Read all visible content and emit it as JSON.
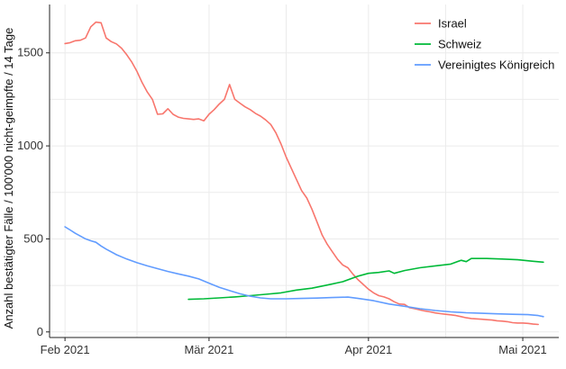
{
  "chart_data": {
    "type": "line",
    "title": "",
    "xlabel": "",
    "ylabel": "Anzahl bestätigter Fälle / 100'000 nicht-geimpfte / 14 Tage",
    "x_range": [
      "2021-01-29",
      "2021-05-08"
    ],
    "ylim": [
      -30,
      1760
    ],
    "x_ticks": [
      {
        "date": "2021-02-01",
        "label": "Feb 2021"
      },
      {
        "date": "2021-03-01",
        "label": "Mär 2021"
      },
      {
        "date": "2021-04-01",
        "label": "Apr 2021"
      },
      {
        "date": "2021-05-01",
        "label": "Mai 2021"
      }
    ],
    "y_ticks": [
      0,
      500,
      1000,
      1500
    ],
    "grid": true,
    "legend_position": "top-right",
    "series": [
      {
        "name": "Israel",
        "color": "#f8766d",
        "points": [
          [
            "2021-02-01",
            1550
          ],
          [
            "2021-02-02",
            1555
          ],
          [
            "2021-02-03",
            1565
          ],
          [
            "2021-02-04",
            1568
          ],
          [
            "2021-02-05",
            1580
          ],
          [
            "2021-02-06",
            1640
          ],
          [
            "2021-02-07",
            1665
          ],
          [
            "2021-02-08",
            1662
          ],
          [
            "2021-02-09",
            1580
          ],
          [
            "2021-02-10",
            1560
          ],
          [
            "2021-02-11",
            1548
          ],
          [
            "2021-02-12",
            1525
          ],
          [
            "2021-02-13",
            1490
          ],
          [
            "2021-02-14",
            1450
          ],
          [
            "2021-02-15",
            1400
          ],
          [
            "2021-02-16",
            1340
          ],
          [
            "2021-02-17",
            1290
          ],
          [
            "2021-02-18",
            1250
          ],
          [
            "2021-02-19",
            1170
          ],
          [
            "2021-02-20",
            1172
          ],
          [
            "2021-02-21",
            1200
          ],
          [
            "2021-02-22",
            1170
          ],
          [
            "2021-02-23",
            1155
          ],
          [
            "2021-02-24",
            1148
          ],
          [
            "2021-02-25",
            1145
          ],
          [
            "2021-02-26",
            1142
          ],
          [
            "2021-02-27",
            1145
          ],
          [
            "2021-02-28",
            1135
          ],
          [
            "2021-03-01",
            1170
          ],
          [
            "2021-03-02",
            1195
          ],
          [
            "2021-03-03",
            1225
          ],
          [
            "2021-03-04",
            1250
          ],
          [
            "2021-03-05",
            1330
          ],
          [
            "2021-03-06",
            1250
          ],
          [
            "2021-03-07",
            1230
          ],
          [
            "2021-03-08",
            1210
          ],
          [
            "2021-03-09",
            1195
          ],
          [
            "2021-03-10",
            1175
          ],
          [
            "2021-03-11",
            1160
          ],
          [
            "2021-03-12",
            1140
          ],
          [
            "2021-03-13",
            1115
          ],
          [
            "2021-03-14",
            1070
          ],
          [
            "2021-03-15",
            1010
          ],
          [
            "2021-03-16",
            940
          ],
          [
            "2021-03-17",
            880
          ],
          [
            "2021-03-18",
            820
          ],
          [
            "2021-03-19",
            760
          ],
          [
            "2021-03-20",
            720
          ],
          [
            "2021-03-21",
            660
          ],
          [
            "2021-03-22",
            590
          ],
          [
            "2021-03-23",
            520
          ],
          [
            "2021-03-24",
            470
          ],
          [
            "2021-03-25",
            430
          ],
          [
            "2021-03-26",
            390
          ],
          [
            "2021-03-27",
            360
          ],
          [
            "2021-03-28",
            345
          ],
          [
            "2021-03-29",
            310
          ],
          [
            "2021-03-30",
            280
          ],
          [
            "2021-03-31",
            255
          ],
          [
            "2021-04-01",
            230
          ],
          [
            "2021-04-02",
            210
          ],
          [
            "2021-04-03",
            195
          ],
          [
            "2021-04-04",
            188
          ],
          [
            "2021-04-05",
            178
          ],
          [
            "2021-04-06",
            162
          ],
          [
            "2021-04-07",
            150
          ],
          [
            "2021-04-08",
            148
          ],
          [
            "2021-04-09",
            130
          ],
          [
            "2021-04-10",
            125
          ],
          [
            "2021-04-11",
            118
          ],
          [
            "2021-04-12",
            112
          ],
          [
            "2021-04-13",
            108
          ],
          [
            "2021-04-14",
            102
          ],
          [
            "2021-04-15",
            98
          ],
          [
            "2021-04-16",
            95
          ],
          [
            "2021-04-17",
            92
          ],
          [
            "2021-04-18",
            88
          ],
          [
            "2021-04-19",
            82
          ],
          [
            "2021-04-20",
            76
          ],
          [
            "2021-04-21",
            72
          ],
          [
            "2021-04-22",
            70
          ],
          [
            "2021-04-23",
            68
          ],
          [
            "2021-04-24",
            66
          ],
          [
            "2021-04-25",
            64
          ],
          [
            "2021-04-26",
            60
          ],
          [
            "2021-04-27",
            58
          ],
          [
            "2021-04-28",
            55
          ],
          [
            "2021-04-29",
            50
          ],
          [
            "2021-04-30",
            48
          ],
          [
            "2021-05-01",
            48
          ],
          [
            "2021-05-02",
            46
          ],
          [
            "2021-05-03",
            42
          ],
          [
            "2021-05-04",
            40
          ]
        ]
      },
      {
        "name": "Schweiz",
        "color": "#00ba38",
        "points": [
          [
            "2021-02-25",
            175
          ],
          [
            "2021-02-28",
            178
          ],
          [
            "2021-03-03",
            183
          ],
          [
            "2021-03-06",
            188
          ],
          [
            "2021-03-09",
            195
          ],
          [
            "2021-03-12",
            202
          ],
          [
            "2021-03-15",
            210
          ],
          [
            "2021-03-18",
            225
          ],
          [
            "2021-03-21",
            235
          ],
          [
            "2021-03-24",
            252
          ],
          [
            "2021-03-27",
            270
          ],
          [
            "2021-03-30",
            300
          ],
          [
            "2021-04-01",
            315
          ],
          [
            "2021-04-03",
            320
          ],
          [
            "2021-04-05",
            328
          ],
          [
            "2021-04-06",
            315
          ],
          [
            "2021-04-08",
            330
          ],
          [
            "2021-04-11",
            345
          ],
          [
            "2021-04-14",
            355
          ],
          [
            "2021-04-17",
            365
          ],
          [
            "2021-04-19",
            385
          ],
          [
            "2021-04-20",
            378
          ],
          [
            "2021-04-21",
            395
          ],
          [
            "2021-04-24",
            395
          ],
          [
            "2021-04-27",
            392
          ],
          [
            "2021-04-30",
            388
          ],
          [
            "2021-05-03",
            380
          ],
          [
            "2021-05-05",
            375
          ]
        ]
      },
      {
        "name": "Vereinigtes Königreich",
        "color": "#619cff",
        "points": [
          [
            "2021-02-01",
            565
          ],
          [
            "2021-02-02",
            548
          ],
          [
            "2021-02-03",
            530
          ],
          [
            "2021-02-04",
            515
          ],
          [
            "2021-02-05",
            500
          ],
          [
            "2021-02-06",
            490
          ],
          [
            "2021-02-07",
            482
          ],
          [
            "2021-02-08",
            462
          ],
          [
            "2021-02-09",
            445
          ],
          [
            "2021-02-11",
            415
          ],
          [
            "2021-02-13",
            392
          ],
          [
            "2021-02-15",
            372
          ],
          [
            "2021-02-17",
            355
          ],
          [
            "2021-02-19",
            340
          ],
          [
            "2021-02-21",
            325
          ],
          [
            "2021-02-23",
            312
          ],
          [
            "2021-02-25",
            300
          ],
          [
            "2021-02-27",
            285
          ],
          [
            "2021-03-01",
            262
          ],
          [
            "2021-03-03",
            240
          ],
          [
            "2021-03-05",
            222
          ],
          [
            "2021-03-07",
            205
          ],
          [
            "2021-03-09",
            192
          ],
          [
            "2021-03-11",
            183
          ],
          [
            "2021-03-13",
            178
          ],
          [
            "2021-03-16",
            178
          ],
          [
            "2021-03-19",
            180
          ],
          [
            "2021-03-22",
            182
          ],
          [
            "2021-03-25",
            185
          ],
          [
            "2021-03-28",
            187
          ],
          [
            "2021-03-30",
            180
          ],
          [
            "2021-04-02",
            168
          ],
          [
            "2021-04-05",
            150
          ],
          [
            "2021-04-08",
            138
          ],
          [
            "2021-04-11",
            125
          ],
          [
            "2021-04-14",
            115
          ],
          [
            "2021-04-17",
            108
          ],
          [
            "2021-04-20",
            103
          ],
          [
            "2021-04-23",
            100
          ],
          [
            "2021-04-26",
            97
          ],
          [
            "2021-04-29",
            95
          ],
          [
            "2021-05-02",
            93
          ],
          [
            "2021-05-04",
            88
          ],
          [
            "2021-05-05",
            82
          ]
        ]
      }
    ]
  }
}
